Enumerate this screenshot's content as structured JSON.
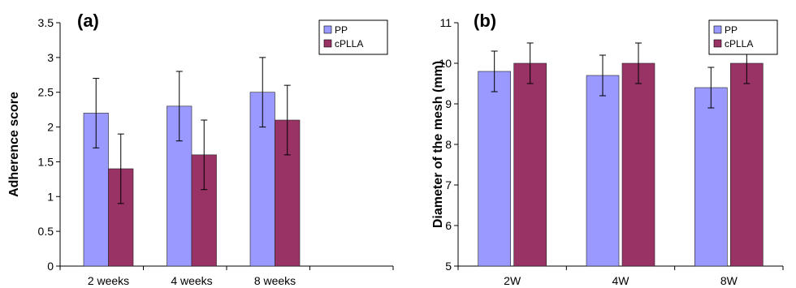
{
  "chart_data": [
    {
      "type": "bar",
      "panel_label": "(a)",
      "title": "",
      "xlabel": "",
      "ylabel": "Adherence score",
      "categories": [
        "2 weeks",
        "4 weeks",
        "8 weeks"
      ],
      "extra_empty_slots": 1,
      "ylim": [
        0,
        3.5
      ],
      "yticks": [
        0,
        0.5,
        1,
        1.5,
        2,
        2.5,
        3,
        3.5
      ],
      "ytick_labels": [
        "0",
        "0.5",
        "1",
        "1.5",
        "2",
        "2.5",
        "3",
        "3.5"
      ],
      "grid": false,
      "legend_position": "top-right",
      "series": [
        {
          "name": "PP",
          "color": "#9999ff",
          "values": [
            2.2,
            2.3,
            2.5
          ],
          "errors": [
            0.5,
            0.5,
            0.5
          ]
        },
        {
          "name": "cPLLA",
          "color": "#993366",
          "values": [
            1.4,
            1.6,
            2.1
          ],
          "errors": [
            0.5,
            0.5,
            0.5
          ]
        }
      ]
    },
    {
      "type": "bar",
      "panel_label": "(b)",
      "title": "",
      "xlabel": "",
      "ylabel": "Diameter of the mesh (mm)",
      "categories": [
        "2W",
        "4W",
        "8W"
      ],
      "extra_empty_slots": 0,
      "ylim": [
        5,
        11
      ],
      "yticks": [
        5,
        6,
        7,
        8,
        9,
        10,
        11
      ],
      "ytick_labels": [
        "5",
        "6",
        "7",
        "8",
        "9",
        "10",
        "11"
      ],
      "grid": false,
      "legend_position": "top-right",
      "series": [
        {
          "name": "PP",
          "color": "#9999ff",
          "values": [
            9.8,
            9.7,
            9.4
          ],
          "errors": [
            0.5,
            0.5,
            0.5
          ]
        },
        {
          "name": "cPLLA",
          "color": "#993366",
          "values": [
            10.0,
            10.0,
            10.0
          ],
          "errors": [
            0.5,
            0.5,
            0.5
          ]
        }
      ]
    }
  ]
}
